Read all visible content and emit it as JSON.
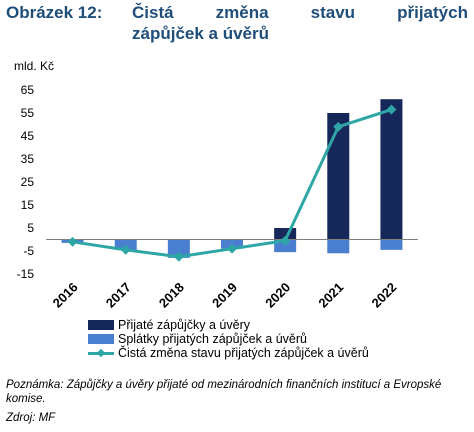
{
  "figure": {
    "label": "Obrázek 12:",
    "title_line1": [
      "Čistá",
      "změna",
      "stavu",
      "přijatých"
    ],
    "title_line2": "zápůjček a úvěrů",
    "note": "Poznámka: Zápůjčky a úvěry přijaté od mezinárodních finančních institucí a Evropské komise.",
    "source": "Zdroj: MF"
  },
  "chart_data": {
    "type": "bar",
    "unit_label": "mld. Kč",
    "categories": [
      "2016",
      "2017",
      "2018",
      "2019",
      "2020",
      "2021",
      "2022"
    ],
    "ylim": [
      -15,
      65
    ],
    "yticks": [
      65,
      55,
      45,
      35,
      25,
      15,
      5,
      -5,
      -15
    ],
    "grid": false,
    "legend_position": "bottom",
    "series": [
      {
        "name": "Přijaté zápůjčky a úvěry",
        "kind": "bar",
        "color": "#16285a",
        "values": [
          0,
          0,
          0,
          0,
          5,
          55,
          61
        ]
      },
      {
        "name": "Splátky přijatých zápůjček a úvěrů",
        "kind": "bar",
        "color": "#4a7fd0",
        "values": [
          -1.5,
          -4.5,
          -8,
          -4,
          -5.5,
          -6,
          -4.5
        ]
      },
      {
        "name": "Čistá změna stavu přijatých zápůjček a úvěrů",
        "kind": "line",
        "color": "#2fa6a6",
        "values": [
          -1,
          -4.5,
          -7.5,
          -4,
          -0.5,
          49,
          56.5
        ]
      }
    ]
  }
}
